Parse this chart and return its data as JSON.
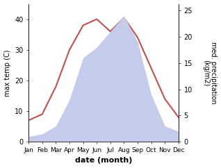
{
  "months": [
    "Jan",
    "Feb",
    "Mar",
    "Apr",
    "May",
    "Jun",
    "Jul",
    "Aug",
    "Sep",
    "Oct",
    "Nov",
    "Dec"
  ],
  "temperature": [
    7.0,
    9.0,
    18.0,
    30.0,
    38.0,
    40.0,
    36.0,
    40.5,
    34.0,
    24.0,
    14.0,
    8.0
  ],
  "precipitation": [
    1.0,
    1.5,
    3.0,
    8.0,
    16.0,
    18.0,
    21.0,
    24.0,
    19.0,
    9.0,
    3.0,
    2.0
  ],
  "temp_color": "#c0504d",
  "precip_fill_color": "#c5cbea",
  "precip_edge_color": "#aab4d8",
  "temp_ylim": [
    0,
    45
  ],
  "precip_ylim": [
    0,
    26.25
  ],
  "temp_yticks": [
    0,
    10,
    20,
    30,
    40
  ],
  "precip_yticks": [
    0,
    5,
    10,
    15,
    20,
    25
  ],
  "xlabel": "date (month)",
  "ylabel_left": "max temp (C)",
  "ylabel_right": "med. precipitation\n(kg/m2)",
  "figsize": [
    3.18,
    2.42
  ],
  "dpi": 100
}
